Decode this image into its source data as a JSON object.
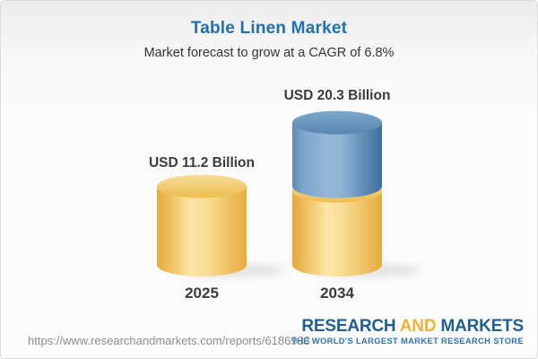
{
  "header": {
    "title": "Table Linen Market",
    "subtitle": "Market forecast to grow at a CAGR of 6.8%"
  },
  "chart_data": {
    "type": "bar",
    "variant": "3d-cylinder",
    "title": "Table Linen Market",
    "subtitle": "Market forecast to grow at a CAGR of 6.8%",
    "cagr_percent": 6.8,
    "unit": "USD Billion",
    "categories": [
      "2025",
      "2034"
    ],
    "values": [
      11.2,
      20.3
    ],
    "bars": [
      {
        "category": "2025",
        "label": "USD 11.2 Billion",
        "total": 11.2,
        "segments": [
          {
            "color_key": "gold",
            "value": 11.2
          }
        ]
      },
      {
        "category": "2034",
        "label": "USD 20.3 Billion",
        "total": 20.3,
        "segments": [
          {
            "color_key": "gold",
            "value": 11.2
          },
          {
            "color_key": "blue",
            "value": 9.1
          }
        ]
      }
    ],
    "colors": {
      "gold": "#f0c25a",
      "blue": "#5c89b2",
      "label_text": "#3b3b3b",
      "title_text": "#2170af"
    },
    "legend": null,
    "grid": false,
    "axes_visible": false
  },
  "footer": {
    "url": "https://www.researchandmarkets.com/reports/6186933",
    "logo": {
      "word1": "RESEARCH",
      "word2": "AND",
      "word3": "MARKETS",
      "tagline": "THE WORLD'S LARGEST MARKET RESEARCH STORE"
    }
  }
}
